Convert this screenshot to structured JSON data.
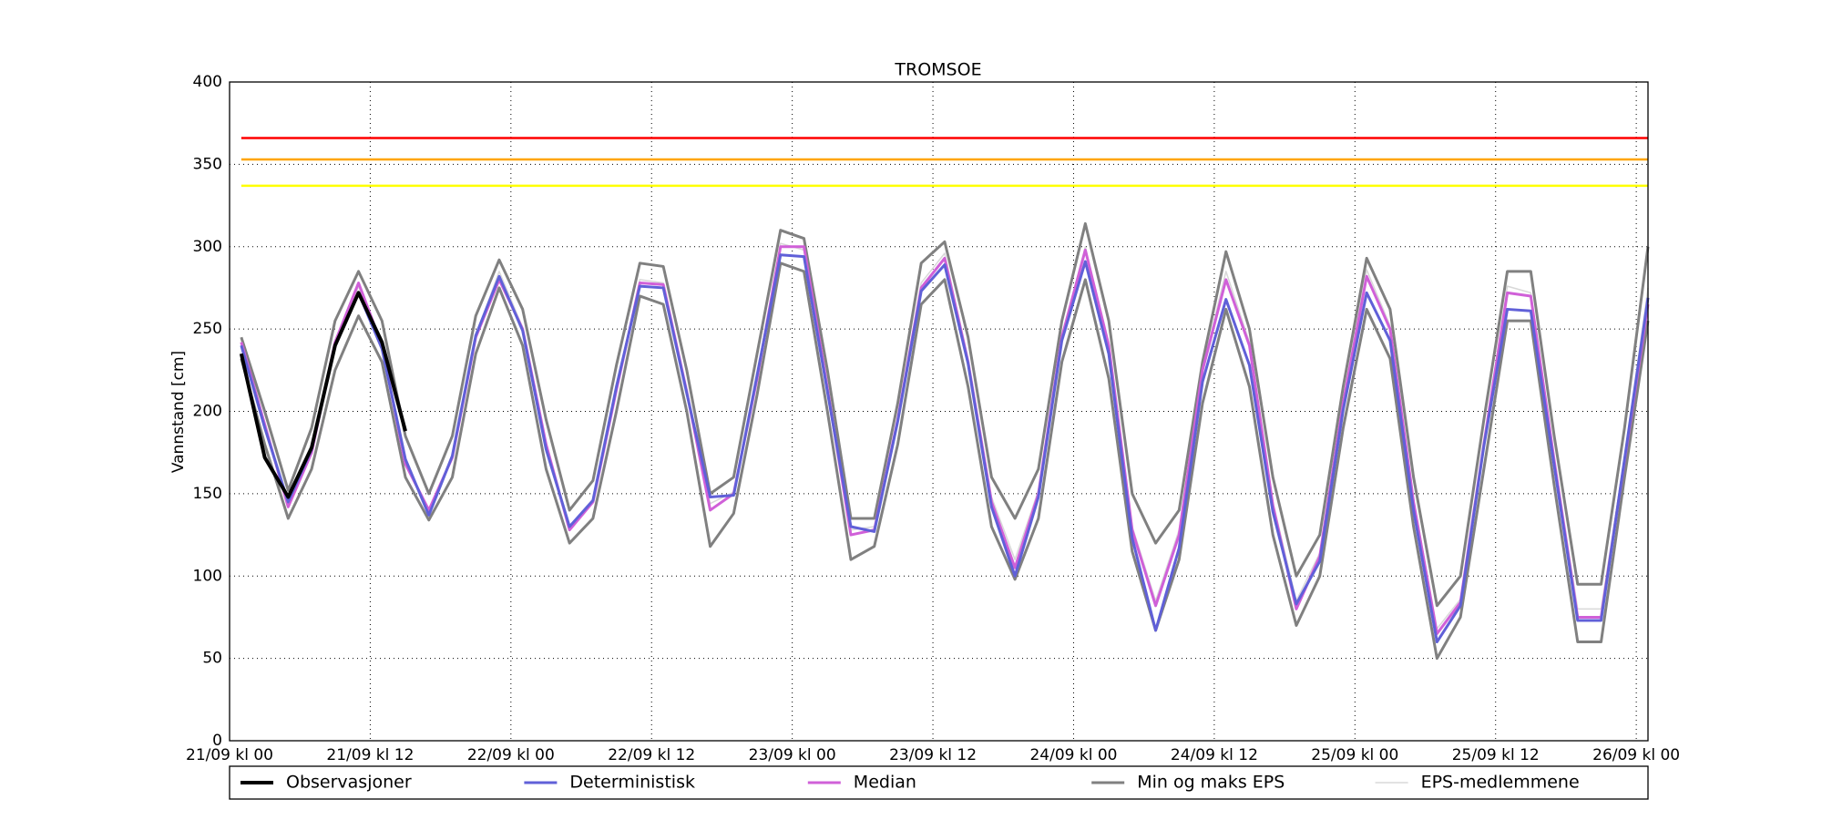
{
  "chart_data": {
    "type": "line",
    "title": "TROMSOE",
    "y_label": "Vannstand [cm]",
    "x": [
      1,
      3,
      5,
      7,
      9,
      11,
      13,
      15,
      17,
      19,
      21,
      23,
      25,
      27,
      29,
      31,
      33,
      35,
      37,
      39,
      41,
      43,
      45,
      47,
      49,
      51,
      53,
      55,
      57,
      59,
      61,
      63,
      65,
      67,
      69,
      71,
      73,
      75,
      77,
      79,
      81,
      83,
      85,
      87,
      89,
      91,
      93,
      95,
      97,
      99,
      101,
      103,
      105,
      107,
      109,
      111,
      113,
      115,
      117,
      119,
      121
    ],
    "xlim": [
      0,
      121
    ],
    "xticks": [
      {
        "value": 0,
        "label": "21/09 kl 00"
      },
      {
        "value": 12,
        "label": "21/09 kl 12"
      },
      {
        "value": 24,
        "label": "22/09 kl 00"
      },
      {
        "value": 36,
        "label": "22/09 kl 12"
      },
      {
        "value": 48,
        "label": "23/09 kl 00"
      },
      {
        "value": 60,
        "label": "23/09 kl 12"
      },
      {
        "value": 72,
        "label": "24/09 kl 00"
      },
      {
        "value": 84,
        "label": "24/09 kl 12"
      },
      {
        "value": 96,
        "label": "25/09 kl 00"
      },
      {
        "value": 108,
        "label": "25/09 kl 12"
      },
      {
        "value": 120,
        "label": "26/09 kl 00"
      }
    ],
    "ylim": [
      0,
      400
    ],
    "yticks": [
      0,
      50,
      100,
      150,
      200,
      250,
      300,
      350,
      400
    ],
    "grid": true,
    "hlines": [
      {
        "value": 366,
        "color": "#ff0000"
      },
      {
        "value": 353,
        "color": "#ffa500"
      },
      {
        "value": 337,
        "color": "#ffff00"
      }
    ],
    "series": [
      {
        "name": "Observasjoner",
        "color": "#000000",
        "x": [
          1,
          3,
          5,
          7,
          9,
          11,
          13,
          15
        ],
        "values": [
          235,
          172,
          148,
          178,
          240,
          272,
          242,
          188
        ]
      },
      {
        "name": "Deterministisk",
        "color": "#6060d8",
        "values": [
          240,
          190,
          145,
          177,
          240,
          272,
          238,
          171,
          137,
          173,
          246,
          282,
          249,
          177,
          130,
          146,
          215,
          276,
          275,
          211,
          148,
          149,
          222,
          295,
          294,
          212,
          130,
          127,
          194,
          273,
          289,
          229,
          142,
          100,
          148,
          243,
          291,
          235,
          123,
          67,
          117,
          218,
          268,
          228,
          139,
          83,
          109,
          201,
          272,
          243,
          140,
          60,
          82,
          179,
          262,
          261,
          167,
          73,
          73,
          171,
          269
        ]
      },
      {
        "name": "Median",
        "color": "#d060d8",
        "values": [
          242,
          192,
          142,
          175,
          242,
          278,
          240,
          168,
          140,
          172,
          245,
          280,
          250,
          180,
          128,
          145,
          213,
          278,
          277,
          212,
          140,
          150,
          220,
          300,
          300,
          214,
          125,
          128,
          195,
          275,
          293,
          230,
          145,
          105,
          150,
          245,
          298,
          240,
          128,
          82,
          125,
          225,
          280,
          240,
          143,
          80,
          112,
          205,
          282,
          250,
          145,
          65,
          84,
          180,
          272,
          270,
          170,
          75,
          75,
          170,
          265
        ]
      },
      {
        "name": "Min og maks EPS",
        "color": "#808080",
        "lower": [
          232,
          180,
          135,
          165,
          225,
          258,
          230,
          160,
          134,
          160,
          235,
          275,
          240,
          165,
          120,
          135,
          200,
          270,
          265,
          200,
          118,
          138,
          210,
          290,
          285,
          200,
          110,
          118,
          180,
          265,
          280,
          215,
          130,
          98,
          135,
          230,
          280,
          220,
          115,
          67,
          110,
          205,
          262,
          215,
          125,
          70,
          100,
          190,
          262,
          232,
          130,
          50,
          75,
          165,
          255,
          255,
          155,
          60,
          60,
          160,
          255
        ],
        "upper": [
          245,
          200,
          152,
          190,
          255,
          285,
          255,
          185,
          150,
          185,
          258,
          292,
          262,
          195,
          140,
          158,
          228,
          290,
          288,
          225,
          150,
          160,
          235,
          310,
          305,
          225,
          135,
          135,
          205,
          290,
          303,
          245,
          160,
          135,
          165,
          255,
          314,
          255,
          150,
          120,
          140,
          230,
          297,
          250,
          160,
          100,
          125,
          215,
          293,
          262,
          160,
          82,
          100,
          195,
          285,
          285,
          185,
          95,
          95,
          190,
          300
        ]
      },
      {
        "name": "EPS-medlemmene",
        "color": "#d8d8d8",
        "values": [
          241,
          191,
          143,
          176,
          241,
          276,
          239,
          170,
          138,
          172,
          246,
          285,
          251,
          178,
          129,
          146,
          214,
          280,
          278,
          211,
          144,
          151,
          221,
          302,
          298,
          213,
          128,
          130,
          196,
          278,
          296,
          232,
          148,
          110,
          152,
          246,
          300,
          238,
          130,
          85,
          128,
          226,
          285,
          242,
          145,
          85,
          114,
          207,
          286,
          252,
          147,
          68,
          86,
          182,
          276,
          272,
          172,
          80,
          80,
          172,
          275
        ]
      }
    ]
  }
}
